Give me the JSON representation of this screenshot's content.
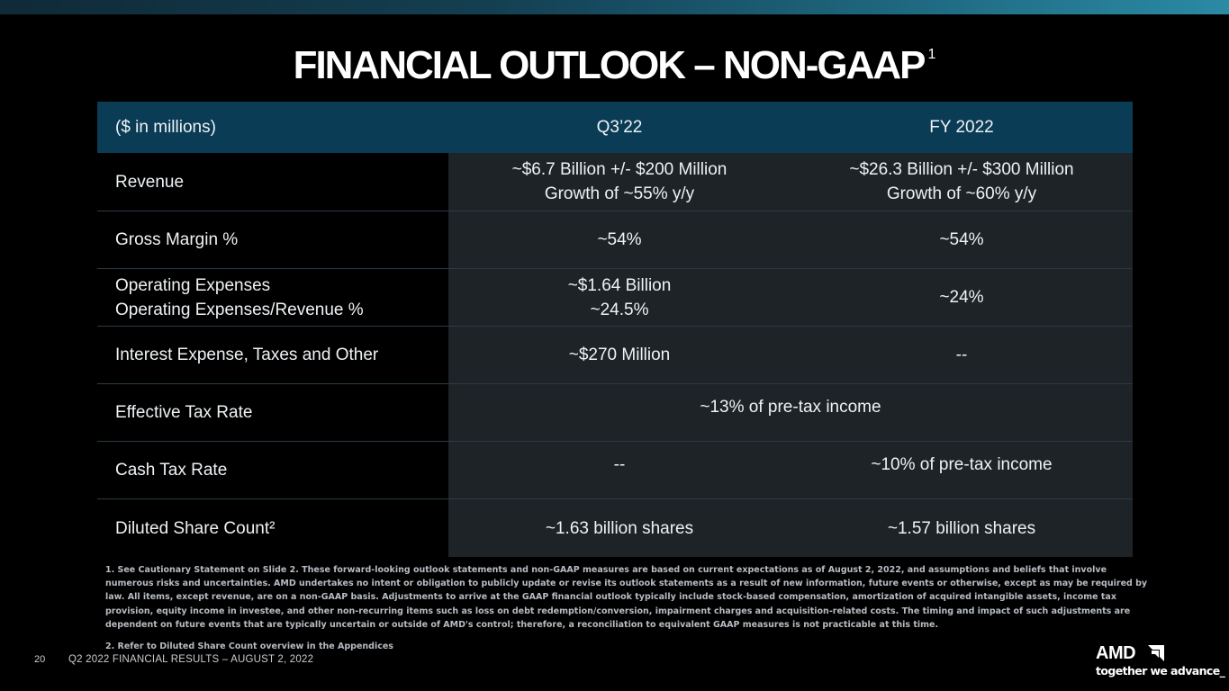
{
  "slide": {
    "title": "FINANCIAL OUTLOOK – NON-GAAP",
    "title_superscript": "1",
    "page_number": "20",
    "footer": "Q2 2022 FINANCIAL RESULTS – AUGUST 2, 2022"
  },
  "table": {
    "headers": [
      "($ in millions)",
      "Q3’22",
      "FY 2022"
    ],
    "rows": [
      {
        "label": [
          "Revenue"
        ],
        "q3": [
          "~$6.7 Billion +/- $200 Million",
          "Growth of ~55% y/y"
        ],
        "fy": [
          "~$26.3 Billion +/- $300 Million",
          "Growth of ~60% y/y"
        ]
      },
      {
        "label": [
          "Gross Margin %"
        ],
        "q3": [
          "~54%"
        ],
        "fy": [
          "~54%"
        ]
      },
      {
        "label": [
          "Operating Expenses",
          "Operating Expenses/Revenue %"
        ],
        "q3": [
          "~$1.64 Billion",
          "~24.5%"
        ],
        "fy": [
          "~24%"
        ]
      },
      {
        "label": [
          "Interest Expense, Taxes and Other"
        ],
        "q3": [
          "~$270 Million"
        ],
        "fy": [
          "--"
        ]
      },
      {
        "label": [
          "Effective Tax Rate"
        ],
        "combined": "~13% of pre-tax income"
      },
      {
        "label": [
          "Cash Tax Rate"
        ],
        "q3": [
          "--"
        ],
        "fy": [
          "~10% of pre-tax income"
        ]
      },
      {
        "label": [
          "Diluted Share Count²"
        ],
        "q3": [
          "~1.63 billion shares"
        ],
        "fy": [
          "~1.57 billion shares"
        ]
      }
    ]
  },
  "footnotes": {
    "note1": "1.  See Cautionary Statement on Slide 2. These forward-looking outlook statements and non-GAAP measures are based on current expectations as of August 2, 2022, and assumptions and beliefs that involve numerous risks and uncertainties. AMD undertakes no intent or obligation to publicly update or revise its outlook statements as a result of new information, future events or otherwise, except as may be required by law. All items, except revenue, are on a non-GAAP basis. Adjustments to arrive at the GAAP financial outlook typically include stock-based compensation, amortization of acquired intangible assets, income tax provision, equity income in investee, and other non-recurring items such as loss on debt redemption/conversion, impairment charges and acquisition-related costs. The timing and impact of such adjustments are dependent on future events that are typically uncertain or outside of AMD's control; therefore, a reconciliation to equivalent GAAP measures is not practicable at this time.",
    "note2": "2.  Refer to Diluted Share Count overview in the Appendices"
  },
  "logo": {
    "wordmark": "AMD",
    "icon": "amd-arrow-icon",
    "tagline": "together we advance_"
  },
  "colors": {
    "header_bg": "#0b3c55",
    "value_cell_bg": "#1e2328",
    "background": "#000000",
    "top_bar_accent": "#2b8aa4"
  }
}
